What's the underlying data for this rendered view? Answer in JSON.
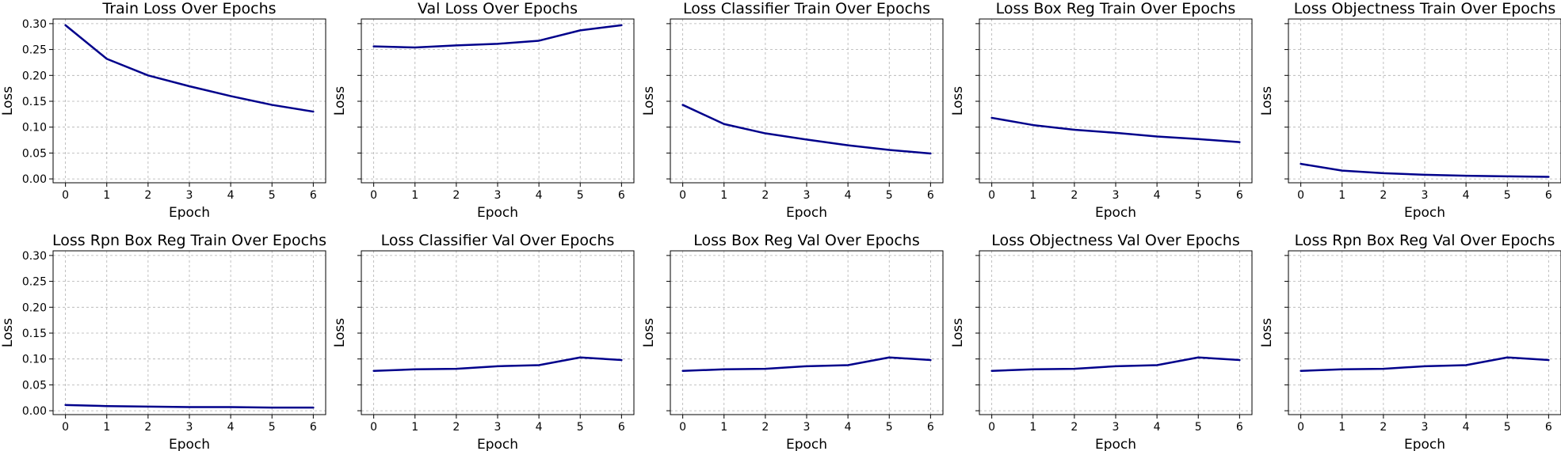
{
  "chart_data": [
    {
      "type": "line",
      "title": "Train Loss Over Epochs",
      "xlabel": "Epoch",
      "ylabel": "Loss",
      "x": [
        0,
        1,
        2,
        3,
        4,
        5,
        6
      ],
      "y": [
        0.297,
        0.232,
        0.2,
        0.179,
        0.16,
        0.143,
        0.13
      ],
      "xlim": [
        -0.3,
        6.3
      ],
      "ylim": [
        -0.0075,
        0.309
      ],
      "grid": true,
      "color": "#00008b",
      "show_yticklabels": true
    },
    {
      "type": "line",
      "title": "Val Loss Over Epochs",
      "xlabel": "Epoch",
      "ylabel": "Loss",
      "x": [
        0,
        1,
        2,
        3,
        4,
        5,
        6
      ],
      "y": [
        0.256,
        0.254,
        0.258,
        0.261,
        0.267,
        0.287,
        0.297
      ],
      "xlim": [
        -0.3,
        6.3
      ],
      "ylim": [
        -0.0075,
        0.309
      ],
      "grid": true,
      "color": "#00008b",
      "show_yticklabels": false
    },
    {
      "type": "line",
      "title": "Loss Classifier Train Over Epochs",
      "xlabel": "Epoch",
      "ylabel": "Loss",
      "x": [
        0,
        1,
        2,
        3,
        4,
        5,
        6
      ],
      "y": [
        0.143,
        0.106,
        0.088,
        0.076,
        0.065,
        0.056,
        0.049
      ],
      "xlim": [
        -0.3,
        6.3
      ],
      "ylim": [
        -0.0075,
        0.309
      ],
      "grid": true,
      "color": "#00008b",
      "show_yticklabels": false
    },
    {
      "type": "line",
      "title": "Loss Box Reg Train Over Epochs",
      "xlabel": "Epoch",
      "ylabel": "Loss",
      "x": [
        0,
        1,
        2,
        3,
        4,
        5,
        6
      ],
      "y": [
        0.118,
        0.104,
        0.095,
        0.089,
        0.082,
        0.077,
        0.071
      ],
      "xlim": [
        -0.3,
        6.3
      ],
      "ylim": [
        -0.0075,
        0.309
      ],
      "grid": true,
      "color": "#00008b",
      "show_yticklabels": false
    },
    {
      "type": "line",
      "title": "Loss Objectness Train Over Epochs",
      "xlabel": "Epoch",
      "ylabel": "Loss",
      "x": [
        0,
        1,
        2,
        3,
        4,
        5,
        6
      ],
      "y": [
        0.029,
        0.016,
        0.011,
        0.008,
        0.006,
        0.005,
        0.004
      ],
      "xlim": [
        -0.3,
        6.3
      ],
      "ylim": [
        -0.0075,
        0.309
      ],
      "grid": true,
      "color": "#00008b",
      "show_yticklabels": false
    },
    {
      "type": "line",
      "title": "Loss Rpn Box Reg Train Over Epochs",
      "xlabel": "Epoch",
      "ylabel": "Loss",
      "x": [
        0,
        1,
        2,
        3,
        4,
        5,
        6
      ],
      "y": [
        0.011,
        0.009,
        0.008,
        0.007,
        0.007,
        0.006,
        0.006
      ],
      "xlim": [
        -0.3,
        6.3
      ],
      "ylim": [
        -0.0075,
        0.309
      ],
      "grid": true,
      "color": "#00008b",
      "show_yticklabels": true
    },
    {
      "type": "line",
      "title": "Loss Classifier Val Over Epochs",
      "xlabel": "Epoch",
      "ylabel": "Loss",
      "x": [
        0,
        1,
        2,
        3,
        4,
        5,
        6
      ],
      "y": [
        0.077,
        0.08,
        0.081,
        0.086,
        0.088,
        0.103,
        0.098
      ],
      "xlim": [
        -0.3,
        6.3
      ],
      "ylim": [
        -0.0075,
        0.309
      ],
      "grid": true,
      "color": "#00008b",
      "show_yticklabels": false
    },
    {
      "type": "line",
      "title": "Loss Box Reg Val Over Epochs",
      "xlabel": "Epoch",
      "ylabel": "Loss",
      "x": [
        0,
        1,
        2,
        3,
        4,
        5,
        6
      ],
      "y": [
        0.077,
        0.08,
        0.081,
        0.086,
        0.088,
        0.103,
        0.098
      ],
      "xlim": [
        -0.3,
        6.3
      ],
      "ylim": [
        -0.0075,
        0.309
      ],
      "grid": true,
      "color": "#00008b",
      "show_yticklabels": false
    },
    {
      "type": "line",
      "title": "Loss Objectness Val Over Epochs",
      "xlabel": "Epoch",
      "ylabel": "Loss",
      "x": [
        0,
        1,
        2,
        3,
        4,
        5,
        6
      ],
      "y": [
        0.077,
        0.08,
        0.081,
        0.086,
        0.088,
        0.103,
        0.098
      ],
      "xlim": [
        -0.3,
        6.3
      ],
      "ylim": [
        -0.0075,
        0.309
      ],
      "grid": true,
      "color": "#00008b",
      "show_yticklabels": false
    },
    {
      "type": "line",
      "title": "Loss Rpn Box Reg Val Over Epochs",
      "xlabel": "Epoch",
      "ylabel": "Loss",
      "x": [
        0,
        1,
        2,
        3,
        4,
        5,
        6
      ],
      "y": [
        0.077,
        0.08,
        0.081,
        0.086,
        0.088,
        0.103,
        0.098
      ],
      "xlim": [
        -0.3,
        6.3
      ],
      "ylim": [
        -0.0075,
        0.309
      ],
      "grid": true,
      "color": "#00008b",
      "show_yticklabels": false
    }
  ],
  "axes": {
    "xticks": [
      0,
      1,
      2,
      3,
      4,
      5,
      6
    ],
    "xtick_labels": [
      "0",
      "1",
      "2",
      "3",
      "4",
      "5",
      "6"
    ],
    "yticks": [
      0.0,
      0.05,
      0.1,
      0.15,
      0.2,
      0.25,
      0.3
    ],
    "ytick_labels": [
      "0.00",
      "0.05",
      "0.10",
      "0.15",
      "0.20",
      "0.25",
      "0.30"
    ]
  }
}
